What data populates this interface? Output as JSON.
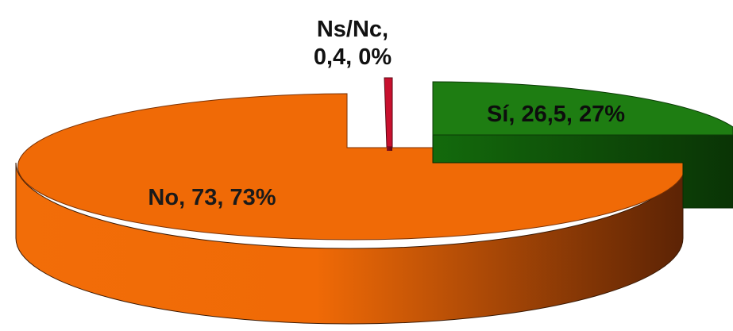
{
  "chart_data": {
    "type": "pie",
    "style": "3d-exploded",
    "slices": [
      {
        "label": "Sí",
        "value": 26.5,
        "percent": "27%",
        "display": "Sí, 26,5, 27%",
        "color": "#1e7d12",
        "side_color_dark": "#0a3405",
        "side_color_light": "#136a0c"
      },
      {
        "label": "Ns/Nc",
        "value": 0.4,
        "percent": "0%",
        "display_lines": [
          "Ns/Nc,",
          "0,4, 0%"
        ],
        "color": "#c8102e",
        "side_color_dark": "#5a0814",
        "side_color_light": "#8b1020"
      },
      {
        "label": "No",
        "value": 73,
        "percent": "73%",
        "display": "No, 73, 73%",
        "color": "#f06a06",
        "side_color_dark": "#5c2305",
        "side_color_light": "#f26d08"
      }
    ]
  }
}
